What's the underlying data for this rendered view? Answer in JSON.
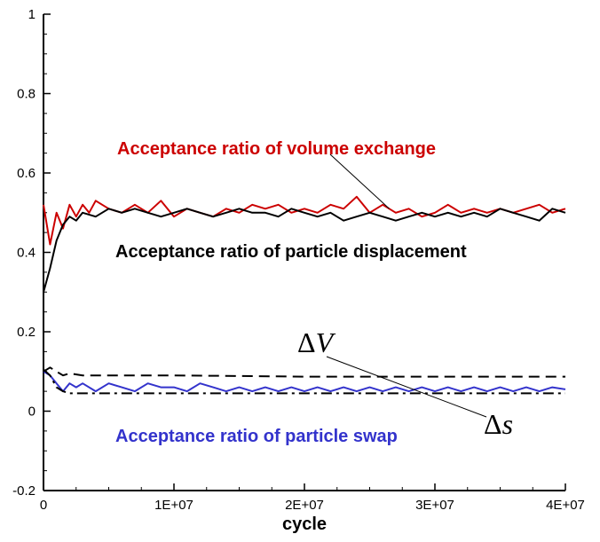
{
  "chart_data": {
    "type": "line",
    "title": "",
    "xlabel": "cycle",
    "ylabel": "",
    "xlim": [
      0,
      40000000
    ],
    "ylim": [
      -0.2,
      1
    ],
    "x_ticks": [
      0,
      10000000,
      20000000,
      30000000,
      40000000
    ],
    "x_tick_labels": [
      "0",
      "1E+07",
      "2E+07",
      "3E+07",
      "4E+07"
    ],
    "y_ticks": [
      -0.2,
      0,
      0.2,
      0.4,
      0.6,
      0.8,
      1
    ],
    "y_tick_labels": [
      "-0.2",
      "0",
      "0.2",
      "0.4",
      "0.6",
      "0.8",
      "1"
    ],
    "grid": false,
    "series": [
      {
        "name": "Acceptance ratio of volume exchange",
        "color": "#cc0000",
        "style": "solid",
        "x": [
          0,
          500000,
          1000000,
          1500000,
          2000000,
          2500000,
          3000000,
          3500000,
          4000000,
          5000000,
          6000000,
          7000000,
          8000000,
          9000000,
          10000000,
          11000000,
          12000000,
          13000000,
          14000000,
          15000000,
          16000000,
          17000000,
          18000000,
          19000000,
          20000000,
          21000000,
          22000000,
          23000000,
          24000000,
          25000000,
          26000000,
          27000000,
          28000000,
          29000000,
          30000000,
          31000000,
          32000000,
          33000000,
          34000000,
          35000000,
          36000000,
          37000000,
          38000000,
          39000000,
          40000000
        ],
        "values": [
          0.52,
          0.42,
          0.5,
          0.46,
          0.52,
          0.49,
          0.52,
          0.5,
          0.53,
          0.51,
          0.5,
          0.52,
          0.5,
          0.53,
          0.49,
          0.51,
          0.5,
          0.49,
          0.51,
          0.5,
          0.52,
          0.51,
          0.52,
          0.5,
          0.51,
          0.5,
          0.52,
          0.51,
          0.54,
          0.5,
          0.52,
          0.5,
          0.51,
          0.49,
          0.5,
          0.52,
          0.5,
          0.51,
          0.5,
          0.51,
          0.5,
          0.51,
          0.52,
          0.5,
          0.51
        ]
      },
      {
        "name": "Acceptance ratio of particle displacement",
        "color": "#000000",
        "style": "solid",
        "x": [
          0,
          500000,
          1000000,
          1500000,
          2000000,
          2500000,
          3000000,
          4000000,
          5000000,
          6000000,
          7000000,
          8000000,
          9000000,
          10000000,
          11000000,
          12000000,
          13000000,
          14000000,
          15000000,
          16000000,
          17000000,
          18000000,
          19000000,
          20000000,
          21000000,
          22000000,
          23000000,
          24000000,
          25000000,
          26000000,
          27000000,
          28000000,
          29000000,
          30000000,
          31000000,
          32000000,
          33000000,
          34000000,
          35000000,
          36000000,
          37000000,
          38000000,
          39000000,
          40000000
        ],
        "values": [
          0.3,
          0.36,
          0.43,
          0.47,
          0.49,
          0.48,
          0.5,
          0.49,
          0.51,
          0.5,
          0.51,
          0.5,
          0.49,
          0.5,
          0.51,
          0.5,
          0.49,
          0.5,
          0.51,
          0.5,
          0.5,
          0.49,
          0.51,
          0.5,
          0.49,
          0.5,
          0.48,
          0.49,
          0.5,
          0.49,
          0.48,
          0.49,
          0.5,
          0.49,
          0.5,
          0.49,
          0.5,
          0.49,
          0.51,
          0.5,
          0.49,
          0.48,
          0.51,
          0.5
        ]
      },
      {
        "name": "Acceptance ratio of particle swap",
        "color": "#3333cc",
        "style": "solid",
        "x": [
          0,
          500000,
          1000000,
          1500000,
          2000000,
          2500000,
          3000000,
          4000000,
          5000000,
          6000000,
          7000000,
          8000000,
          9000000,
          10000000,
          11000000,
          12000000,
          13000000,
          14000000,
          15000000,
          16000000,
          17000000,
          18000000,
          19000000,
          20000000,
          21000000,
          22000000,
          23000000,
          24000000,
          25000000,
          26000000,
          27000000,
          28000000,
          29000000,
          30000000,
          31000000,
          32000000,
          33000000,
          34000000,
          35000000,
          36000000,
          37000000,
          38000000,
          39000000,
          40000000
        ],
        "values": [
          0.1,
          0.09,
          0.07,
          0.05,
          0.07,
          0.06,
          0.07,
          0.05,
          0.07,
          0.06,
          0.05,
          0.07,
          0.06,
          0.06,
          0.05,
          0.07,
          0.06,
          0.05,
          0.06,
          0.05,
          0.06,
          0.05,
          0.06,
          0.05,
          0.06,
          0.05,
          0.06,
          0.05,
          0.06,
          0.05,
          0.06,
          0.05,
          0.06,
          0.05,
          0.06,
          0.05,
          0.06,
          0.05,
          0.06,
          0.05,
          0.06,
          0.05,
          0.06,
          0.055
        ]
      },
      {
        "name": "ΔV",
        "color": "#000000",
        "style": "dashed",
        "x": [
          0,
          500000,
          1000000,
          1500000,
          2000000,
          3000000,
          5000000,
          10000000,
          20000000,
          30000000,
          40000000
        ],
        "values": [
          0.1,
          0.11,
          0.1,
          0.09,
          0.095,
          0.09,
          0.09,
          0.09,
          0.087,
          0.087,
          0.087
        ]
      },
      {
        "name": "Δs",
        "color": "#000000",
        "style": "dashdot",
        "x": [
          0,
          500000,
          1000000,
          1500000,
          2000000,
          3000000,
          5000000,
          10000000,
          20000000,
          30000000,
          40000000
        ],
        "values": [
          0.105,
          0.09,
          0.06,
          0.05,
          0.045,
          0.045,
          0.045,
          0.045,
          0.045,
          0.045,
          0.045
        ]
      }
    ],
    "annotations": [
      {
        "text": "Acceptance ratio of volume exchange",
        "color": "#cc0000",
        "points_to": [
          26500000,
          0.51
        ]
      },
      {
        "text": "Acceptance ratio of particle displacement",
        "color": "#000000"
      },
      {
        "text": "Acceptance ratio of particle swap",
        "color": "#3333cc"
      },
      {
        "text": "ΔV",
        "points_to": [
          27000000,
          0.087
        ]
      },
      {
        "text": "Δs",
        "points_to": [
          27000000,
          0.06
        ]
      }
    ]
  }
}
